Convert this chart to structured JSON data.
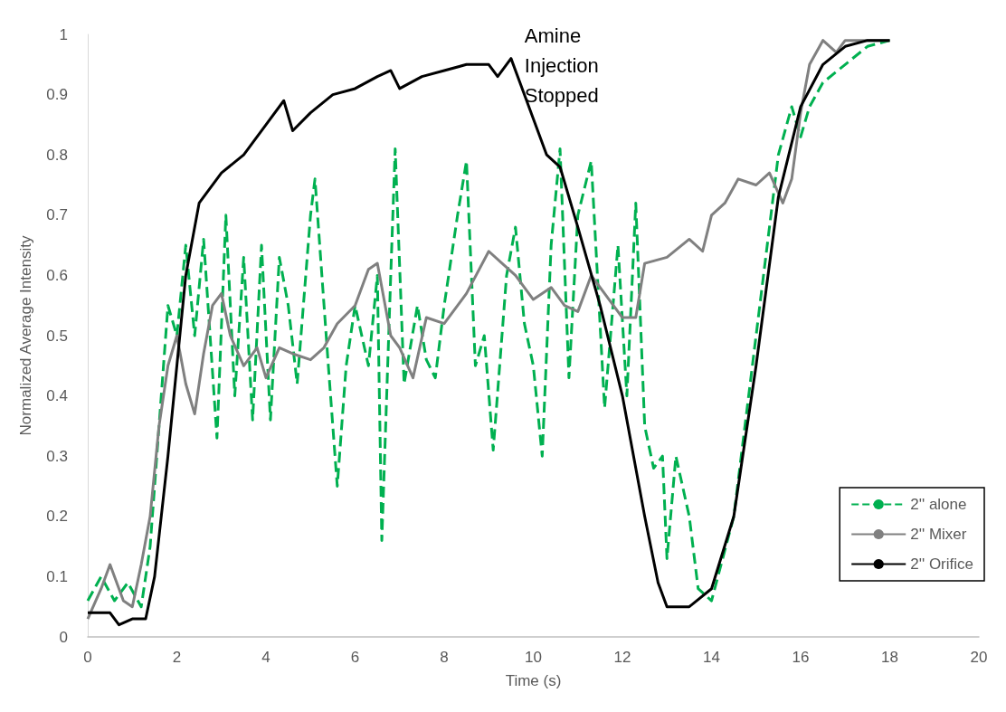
{
  "chart_data": {
    "type": "line",
    "xlabel": "Time (s)",
    "ylabel": "Normalized Average Intensity",
    "xlim": [
      0,
      20
    ],
    "xticks": [
      0,
      2,
      4,
      6,
      8,
      10,
      12,
      14,
      16,
      18,
      20
    ],
    "ylim": [
      0,
      1
    ],
    "yticks": [
      0,
      0.1,
      0.2,
      0.3,
      0.4,
      0.5,
      0.6,
      0.7,
      0.8,
      0.9,
      1
    ],
    "grid": false,
    "legend": "bottom right",
    "marker": "none",
    "annotations": [
      {
        "text": "Amine Injection Stopped",
        "x": 9.6,
        "y": 0.96
      }
    ],
    "series": [
      {
        "name": "2'' alone",
        "color": "#00b050",
        "line_style": "dashed",
        "x": [
          0,
          0.3,
          0.6,
          0.9,
          1.2,
          1.4,
          1.6,
          1.8,
          2.0,
          2.2,
          2.4,
          2.6,
          2.9,
          3.1,
          3.3,
          3.5,
          3.7,
          3.9,
          4.1,
          4.3,
          4.5,
          4.7,
          5.0,
          5.1,
          5.4,
          5.6,
          5.8,
          6.0,
          6.3,
          6.5,
          6.6,
          6.8,
          6.9,
          7.1,
          7.4,
          7.6,
          7.8,
          8.0,
          8.3,
          8.5,
          8.7,
          8.9,
          9.1,
          9.4,
          9.6,
          9.8,
          10.0,
          10.2,
          10.4,
          10.6,
          10.8,
          11.0,
          11.3,
          11.6,
          11.9,
          12.1,
          12.3,
          12.5,
          12.7,
          12.9,
          13.0,
          13.2,
          13.5,
          13.7,
          14.0,
          14.5,
          15.0,
          15.3,
          15.5,
          15.8,
          16.0,
          16.2,
          16.5,
          17.0,
          17.5,
          18.0
        ],
        "values": [
          0.06,
          0.1,
          0.06,
          0.09,
          0.05,
          0.15,
          0.35,
          0.55,
          0.5,
          0.65,
          0.5,
          0.66,
          0.33,
          0.7,
          0.4,
          0.63,
          0.36,
          0.65,
          0.36,
          0.63,
          0.55,
          0.42,
          0.7,
          0.76,
          0.45,
          0.25,
          0.45,
          0.55,
          0.45,
          0.6,
          0.16,
          0.6,
          0.81,
          0.42,
          0.55,
          0.46,
          0.43,
          0.55,
          0.7,
          0.79,
          0.45,
          0.5,
          0.31,
          0.6,
          0.68,
          0.52,
          0.45,
          0.3,
          0.65,
          0.81,
          0.43,
          0.7,
          0.79,
          0.38,
          0.65,
          0.4,
          0.72,
          0.35,
          0.28,
          0.3,
          0.13,
          0.3,
          0.2,
          0.08,
          0.06,
          0.2,
          0.5,
          0.68,
          0.8,
          0.88,
          0.83,
          0.88,
          0.92,
          0.95,
          0.98,
          0.99
        ]
      },
      {
        "name": "2'' Mixer",
        "color": "#808080",
        "line_style": "solid",
        "x": [
          0,
          0.3,
          0.5,
          0.8,
          1.0,
          1.2,
          1.4,
          1.6,
          1.8,
          2.0,
          2.2,
          2.4,
          2.6,
          2.8,
          3.0,
          3.2,
          3.5,
          3.8,
          4.0,
          4.3,
          4.6,
          5.0,
          5.3,
          5.6,
          6.0,
          6.3,
          6.5,
          6.8,
          7.0,
          7.3,
          7.6,
          8.0,
          8.5,
          9.0,
          9.3,
          9.6,
          10.0,
          10.4,
          10.7,
          11.0,
          11.3,
          11.7,
          12.0,
          12.3,
          12.5,
          13.0,
          13.5,
          13.8,
          14.0,
          14.3,
          14.6,
          15.0,
          15.3,
          15.6,
          15.8,
          16.0,
          16.2,
          16.5,
          16.8,
          17.0,
          17.5,
          18.0
        ],
        "values": [
          0.03,
          0.08,
          0.12,
          0.06,
          0.05,
          0.12,
          0.2,
          0.35,
          0.45,
          0.5,
          0.42,
          0.37,
          0.47,
          0.55,
          0.57,
          0.5,
          0.45,
          0.48,
          0.43,
          0.48,
          0.47,
          0.46,
          0.48,
          0.52,
          0.55,
          0.61,
          0.62,
          0.5,
          0.48,
          0.43,
          0.53,
          0.52,
          0.57,
          0.64,
          0.62,
          0.6,
          0.56,
          0.58,
          0.55,
          0.54,
          0.6,
          0.56,
          0.53,
          0.53,
          0.62,
          0.63,
          0.66,
          0.64,
          0.7,
          0.72,
          0.76,
          0.75,
          0.77,
          0.72,
          0.76,
          0.87,
          0.95,
          0.99,
          0.97,
          0.99,
          0.99,
          0.99
        ]
      },
      {
        "name": "2'' Orifice",
        "color": "#000000",
        "line_style": "solid",
        "x": [
          0,
          0.5,
          0.7,
          1.0,
          1.3,
          1.5,
          1.8,
          2.0,
          2.2,
          2.5,
          3.0,
          3.5,
          4.0,
          4.4,
          4.6,
          5.0,
          5.5,
          6.0,
          6.5,
          6.8,
          7.0,
          7.5,
          8.0,
          8.5,
          9.0,
          9.2,
          9.5,
          9.7,
          10.0,
          10.3,
          10.6,
          11.0,
          11.5,
          12.0,
          12.5,
          12.8,
          13.0,
          13.5,
          14.0,
          14.5,
          15.0,
          15.5,
          16.0,
          16.5,
          17.0,
          17.5,
          18.0
        ],
        "values": [
          0.04,
          0.04,
          0.02,
          0.03,
          0.03,
          0.1,
          0.3,
          0.45,
          0.6,
          0.72,
          0.77,
          0.8,
          0.85,
          0.89,
          0.84,
          0.87,
          0.9,
          0.91,
          0.93,
          0.94,
          0.91,
          0.93,
          0.94,
          0.95,
          0.95,
          0.93,
          0.96,
          0.92,
          0.86,
          0.8,
          0.78,
          0.68,
          0.55,
          0.4,
          0.2,
          0.09,
          0.05,
          0.05,
          0.08,
          0.2,
          0.45,
          0.73,
          0.88,
          0.95,
          0.98,
          0.99,
          0.99
        ]
      }
    ]
  }
}
